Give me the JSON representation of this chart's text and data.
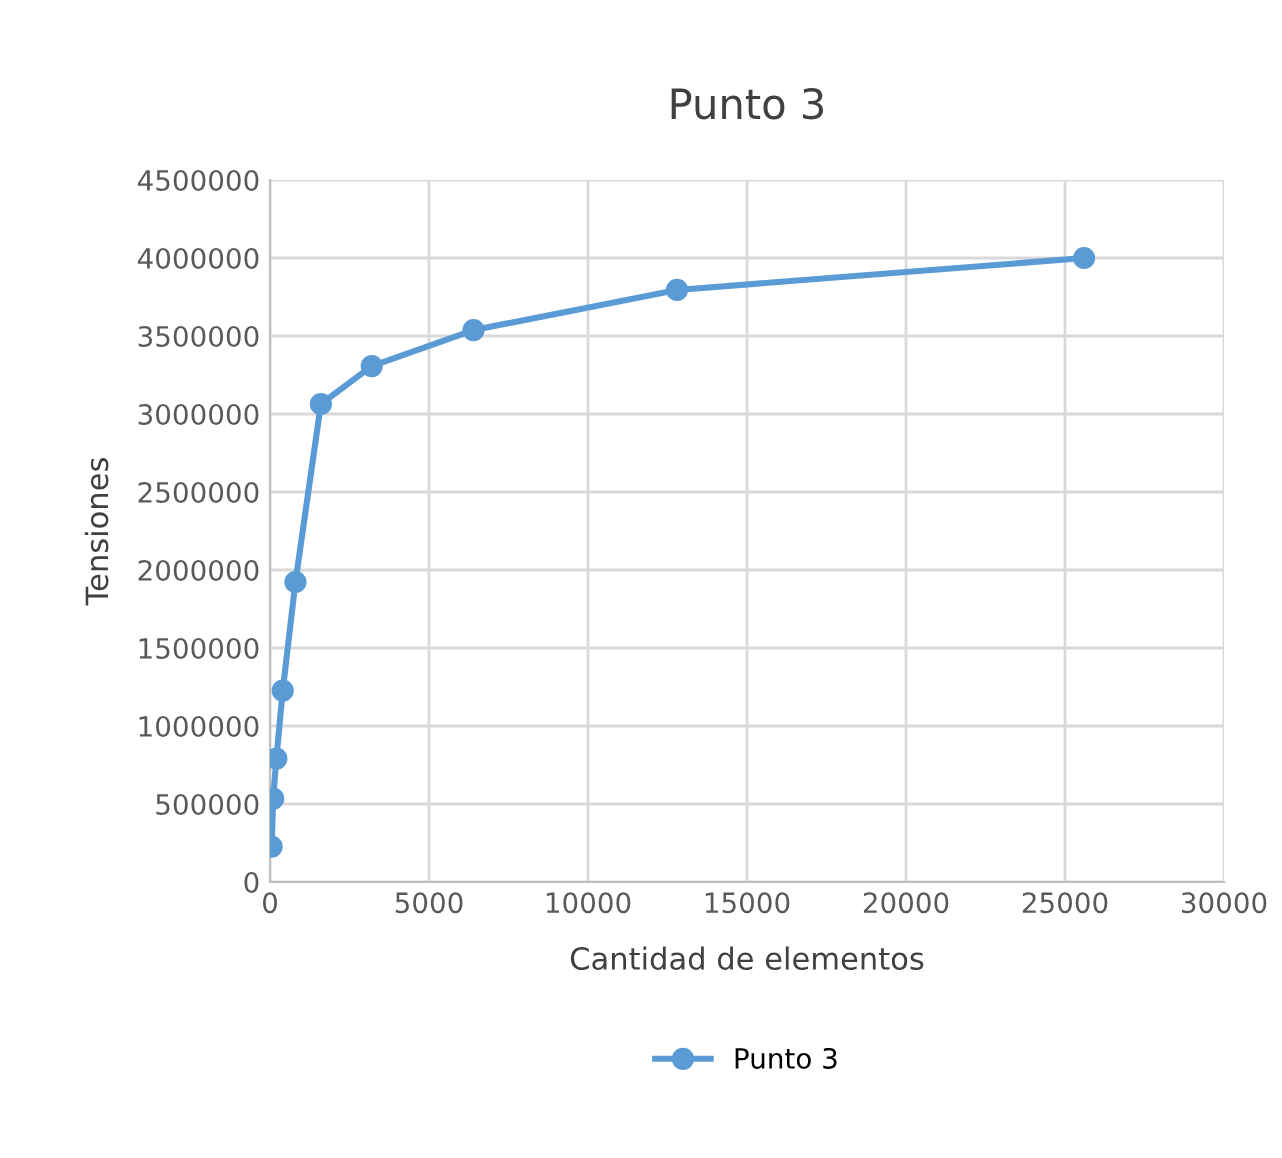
{
  "chart_data": {
    "type": "line",
    "title": "Punto 3",
    "xlabel": "Cantidad de elementos",
    "ylabel": "Tensiones",
    "x": [
      50,
      100,
      200,
      400,
      800,
      1600,
      3200,
      6400,
      12800,
      25600
    ],
    "series": [
      {
        "name": "Punto 3",
        "color": "#5b9bd5",
        "values": [
          227000,
          535000,
          791000,
          1227000,
          1923000,
          3064000,
          3307000,
          3538000,
          3795000,
          4000000
        ]
      }
    ],
    "xlim": [
      0,
      30000
    ],
    "xticks": [
      0,
      5000,
      10000,
      15000,
      20000,
      25000,
      30000
    ],
    "ylim": [
      0,
      4500000
    ],
    "yticks": [
      0,
      500000,
      1000000,
      1500000,
      2000000,
      2500000,
      3000000,
      3500000,
      4000000,
      4500000
    ],
    "grid": true,
    "legend": "bottom",
    "marker": "circle",
    "line_style": "solid"
  }
}
